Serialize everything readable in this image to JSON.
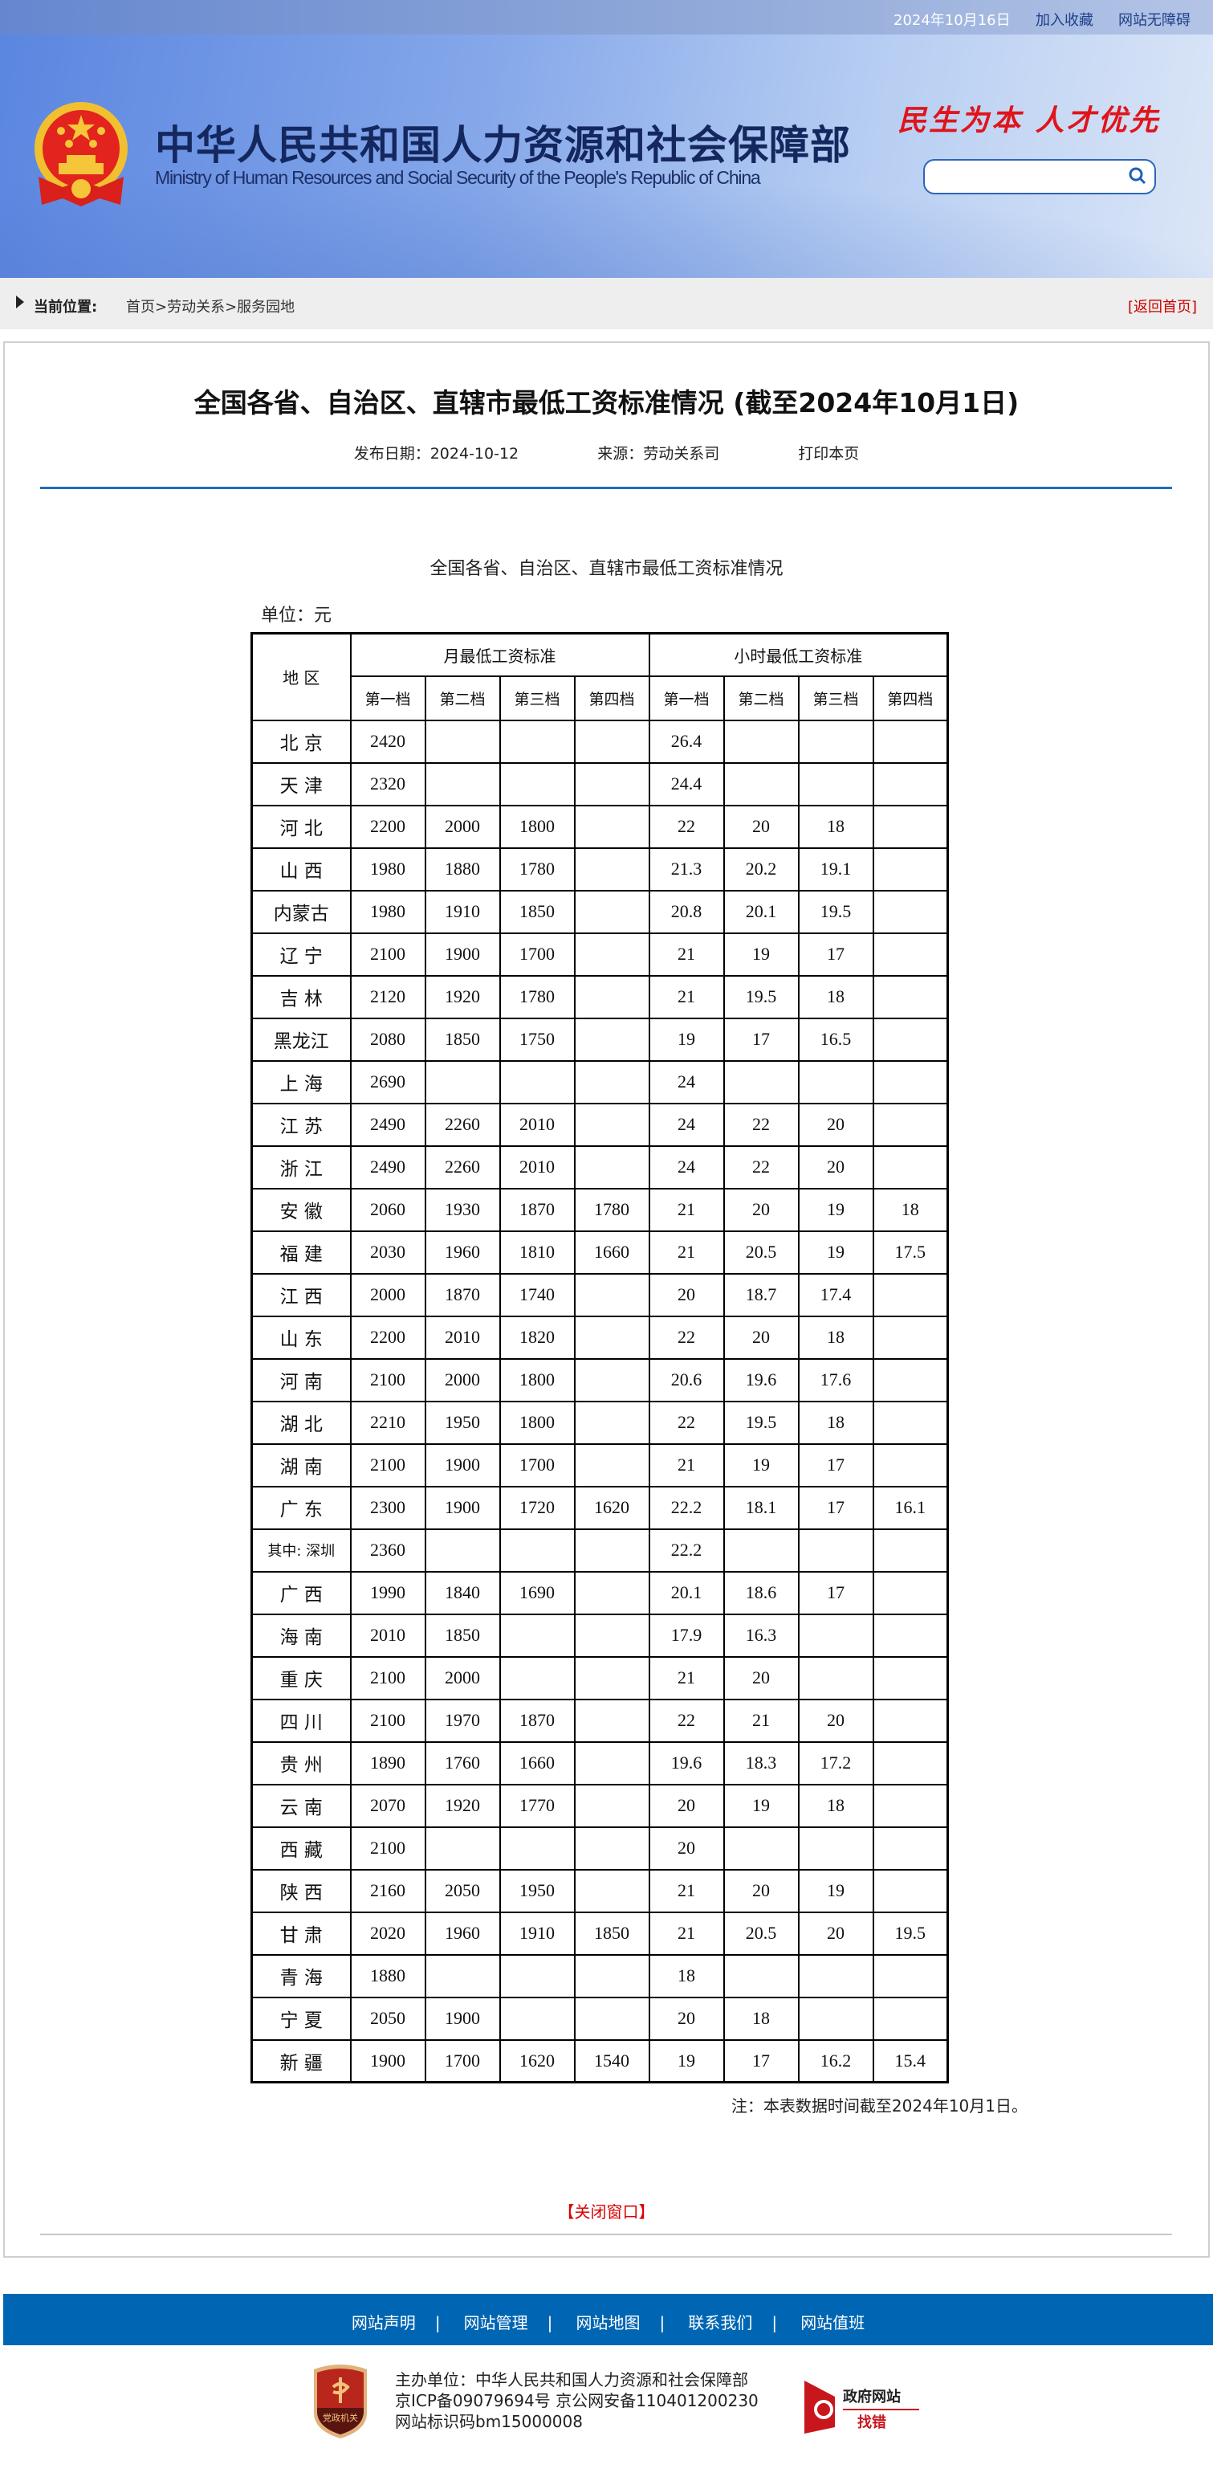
{
  "topbar": {
    "date": "2024年10月16日",
    "links": [
      "加入收藏",
      "网站无障碍"
    ]
  },
  "header": {
    "cn_title": "中华人民共和国人力资源和社会保障部",
    "en_title": "Ministry of Human Resources and Social Security of the People's Republic of China",
    "slogan": "民生为本 人才优先",
    "search_placeholder": "",
    "search_icon": "search-icon"
  },
  "breadcrumb": {
    "label": "当前位置:",
    "items": [
      "首页",
      "劳动关系",
      "服务园地"
    ],
    "separator": ">",
    "path_text": "首页>劳动关系>服务园地",
    "home_link": "[返回首页]"
  },
  "article": {
    "title": "全国各省、自治区、直辖市最低工资标准情况 (截至2024年10月1日)",
    "publish_date": "发布日期：2024-10-12",
    "source": "来源：劳动关系司",
    "print": "打印本页",
    "subtitle": "全国各省、自治区、直辖市最低工资标准情况",
    "unit": "单位：元",
    "note": "注：本表数据时间截至2024年10月1日。",
    "close": "【关闭窗口】"
  },
  "table": {
    "region_header": "地 区",
    "monthly_header": "月最低工资标准",
    "hourly_header": "小时最低工资标准",
    "tiers": [
      "第一档",
      "第二档",
      "第三档",
      "第四档",
      "第一档",
      "第二档",
      "第三档",
      "第四档"
    ],
    "rows": [
      {
        "region": "北 京",
        "values": [
          "2420",
          "",
          "",
          "",
          "26.4",
          "",
          "",
          ""
        ]
      },
      {
        "region": "天 津",
        "values": [
          "2320",
          "",
          "",
          "",
          "24.4",
          "",
          "",
          ""
        ]
      },
      {
        "region": "河 北",
        "values": [
          "2200",
          "2000",
          "1800",
          "",
          "22",
          "20",
          "18",
          ""
        ]
      },
      {
        "region": "山 西",
        "values": [
          "1980",
          "1880",
          "1780",
          "",
          "21.3",
          "20.2",
          "19.1",
          ""
        ]
      },
      {
        "region": "内蒙古",
        "values": [
          "1980",
          "1910",
          "1850",
          "",
          "20.8",
          "20.1",
          "19.5",
          ""
        ]
      },
      {
        "region": "辽 宁",
        "values": [
          "2100",
          "1900",
          "1700",
          "",
          "21",
          "19",
          "17",
          ""
        ]
      },
      {
        "region": "吉 林",
        "values": [
          "2120",
          "1920",
          "1780",
          "",
          "21",
          "19.5",
          "18",
          ""
        ]
      },
      {
        "region": "黑龙江",
        "values": [
          "2080",
          "1850",
          "1750",
          "",
          "19",
          "17",
          "16.5",
          ""
        ]
      },
      {
        "region": "上 海",
        "values": [
          "2690",
          "",
          "",
          "",
          "24",
          "",
          "",
          ""
        ]
      },
      {
        "region": "江 苏",
        "values": [
          "2490",
          "2260",
          "2010",
          "",
          "24",
          "22",
          "20",
          ""
        ]
      },
      {
        "region": "浙 江",
        "values": [
          "2490",
          "2260",
          "2010",
          "",
          "24",
          "22",
          "20",
          ""
        ]
      },
      {
        "region": "安 徽",
        "values": [
          "2060",
          "1930",
          "1870",
          "1780",
          "21",
          "20",
          "19",
          "18"
        ]
      },
      {
        "region": "福 建",
        "values": [
          "2030",
          "1960",
          "1810",
          "1660",
          "21",
          "20.5",
          "19",
          "17.5"
        ]
      },
      {
        "region": "江 西",
        "values": [
          "2000",
          "1870",
          "1740",
          "",
          "20",
          "18.7",
          "17.4",
          ""
        ]
      },
      {
        "region": "山 东",
        "values": [
          "2200",
          "2010",
          "1820",
          "",
          "22",
          "20",
          "18",
          ""
        ]
      },
      {
        "region": "河 南",
        "values": [
          "2100",
          "2000",
          "1800",
          "",
          "20.6",
          "19.6",
          "17.6",
          ""
        ]
      },
      {
        "region": "湖 北",
        "values": [
          "2210",
          "1950",
          "1800",
          "",
          "22",
          "19.5",
          "18",
          ""
        ]
      },
      {
        "region": "湖 南",
        "values": [
          "2100",
          "1900",
          "1700",
          "",
          "21",
          "19",
          "17",
          ""
        ]
      },
      {
        "region": "广 东",
        "values": [
          "2300",
          "1900",
          "1720",
          "1620",
          "22.2",
          "18.1",
          "17",
          "16.1"
        ]
      },
      {
        "region": "其中: 深圳",
        "values": [
          "2360",
          "",
          "",
          "",
          "22.2",
          "",
          "",
          ""
        ]
      },
      {
        "region": "广 西",
        "values": [
          "1990",
          "1840",
          "1690",
          "",
          "20.1",
          "18.6",
          "17",
          ""
        ]
      },
      {
        "region": "海 南",
        "values": [
          "2010",
          "1850",
          "",
          "",
          "17.9",
          "16.3",
          "",
          ""
        ]
      },
      {
        "region": "重 庆",
        "values": [
          "2100",
          "2000",
          "",
          "",
          "21",
          "20",
          "",
          ""
        ]
      },
      {
        "region": "四 川",
        "values": [
          "2100",
          "1970",
          "1870",
          "",
          "22",
          "21",
          "20",
          ""
        ]
      },
      {
        "region": "贵 州",
        "values": [
          "1890",
          "1760",
          "1660",
          "",
          "19.6",
          "18.3",
          "17.2",
          ""
        ]
      },
      {
        "region": "云 南",
        "values": [
          "2070",
          "1920",
          "1770",
          "",
          "20",
          "19",
          "18",
          ""
        ]
      },
      {
        "region": "西 藏",
        "values": [
          "2100",
          "",
          "",
          "",
          "20",
          "",
          "",
          ""
        ]
      },
      {
        "region": "陕 西",
        "values": [
          "2160",
          "2050",
          "1950",
          "",
          "21",
          "20",
          "19",
          ""
        ]
      },
      {
        "region": "甘 肃",
        "values": [
          "2020",
          "1960",
          "1910",
          "1850",
          "21",
          "20.5",
          "20",
          "19.5"
        ]
      },
      {
        "region": "青 海",
        "values": [
          "1880",
          "",
          "",
          "",
          "18",
          "",
          "",
          ""
        ]
      },
      {
        "region": "宁 夏",
        "values": [
          "2050",
          "1900",
          "",
          "",
          "20",
          "18",
          "",
          ""
        ]
      },
      {
        "region": "新 疆",
        "values": [
          "1900",
          "1700",
          "1620",
          "1540",
          "19",
          "17",
          "16.2",
          "15.4"
        ]
      }
    ]
  },
  "footer": {
    "links": [
      "网站声明",
      "网站管理",
      "网站地图",
      "联系我们",
      "网站值班"
    ],
    "sponsor": "主办单位：中华人民共和国人力资源和社会保障部",
    "icp": "京ICP备09079694号 京公网安备110401200230",
    "site_code": "网站标识码bm15000008",
    "badge_text": "党政机关",
    "gov_logo_text": [
      "政府网站",
      "找错"
    ]
  },
  "colors": {
    "brand_blue": "#0066b3",
    "link_red": "#cc0000",
    "title_navy": "#14275e"
  }
}
